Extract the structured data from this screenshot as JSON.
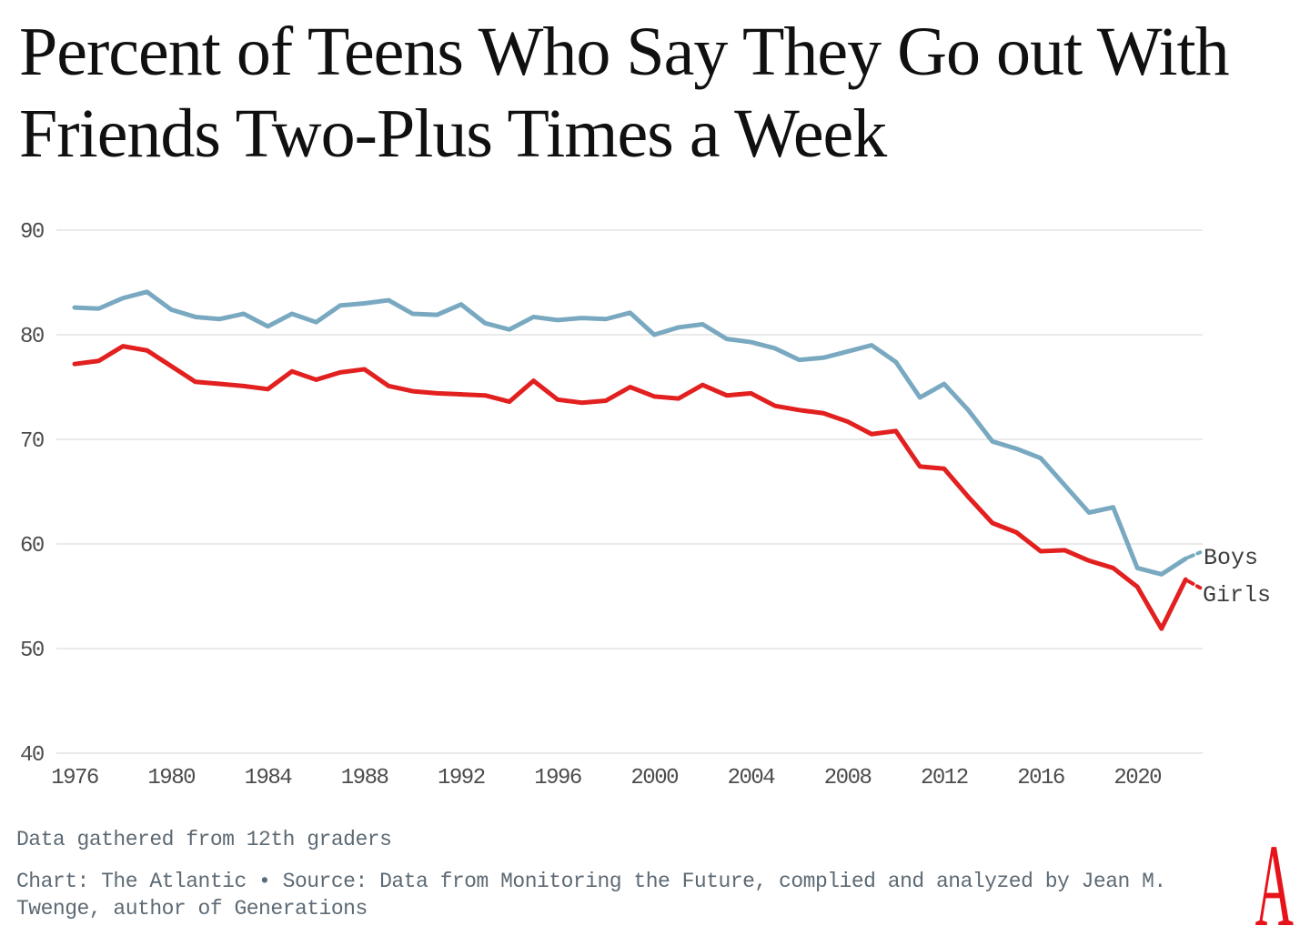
{
  "page": {
    "title_lines": [
      "Percent of Teens Who Say They Go out With",
      "Friends Two-Plus Times a Week"
    ],
    "footer_note": "Data gathered from 12th graders",
    "footer_credit": "Chart: The Atlantic • Source: Data from Monitoring the Future, complied and analyzed by Jean M. Twenge, author of Generations",
    "logo_letter": "A"
  },
  "colors": {
    "boys_line": "#79a9c1",
    "girls_line": "#e1201f",
    "gridline": "#e4e4e4",
    "axis_text": "#4c4c4c",
    "footer_text": "#5d6a74",
    "series_label_text": "#3c3c3c",
    "logo_red": "#e7131a"
  },
  "chart_data": {
    "type": "line",
    "title": "Percent of Teens Who Say They Go out With Friends Two-Plus Times a Week",
    "note": "Data gathered from 12th graders",
    "xlabel": "",
    "ylabel": "",
    "ylim": [
      40,
      90
    ],
    "y_ticks": [
      90,
      80,
      70,
      60,
      50,
      40
    ],
    "x_ticks": [
      1976,
      1980,
      1984,
      1988,
      1992,
      1996,
      2000,
      2004,
      2008,
      2012,
      2016,
      2020
    ],
    "grid": "horizontal",
    "legend_position": "right-end-of-lines",
    "years": [
      1976,
      1977,
      1978,
      1979,
      1980,
      1981,
      1982,
      1983,
      1984,
      1985,
      1986,
      1987,
      1988,
      1989,
      1990,
      1991,
      1992,
      1993,
      1994,
      1995,
      1996,
      1997,
      1998,
      1999,
      2000,
      2001,
      2002,
      2003,
      2004,
      2005,
      2006,
      2007,
      2008,
      2009,
      2010,
      2011,
      2012,
      2013,
      2014,
      2015,
      2016,
      2017,
      2018,
      2019,
      2020,
      2021,
      2022
    ],
    "series": [
      {
        "name": "Boys",
        "color": "#79a9c1",
        "values": [
          82.6,
          82.5,
          83.5,
          84.1,
          82.4,
          81.7,
          81.5,
          82.0,
          80.8,
          82.0,
          81.2,
          82.8,
          83.0,
          83.3,
          82.0,
          81.9,
          82.9,
          81.1,
          80.5,
          81.7,
          81.4,
          81.6,
          81.5,
          82.1,
          80.0,
          80.7,
          81.0,
          79.6,
          79.3,
          78.7,
          77.6,
          77.8,
          78.4,
          79.0,
          77.4,
          74.0,
          75.3,
          72.8,
          69.8,
          69.1,
          68.2,
          65.6,
          63.0,
          63.5,
          57.7,
          57.1,
          58.6
        ],
        "dashed_tail_value": 59.2
      },
      {
        "name": "Girls",
        "color": "#e1201f",
        "values": [
          77.2,
          77.5,
          78.9,
          78.5,
          77.0,
          75.5,
          75.3,
          75.1,
          74.8,
          76.5,
          75.7,
          76.4,
          76.7,
          75.1,
          74.6,
          74.4,
          74.3,
          74.2,
          73.6,
          75.6,
          73.8,
          73.5,
          73.7,
          75.0,
          74.1,
          73.9,
          75.2,
          74.2,
          74.4,
          73.2,
          72.8,
          72.5,
          71.7,
          70.5,
          70.8,
          67.4,
          67.2,
          64.5,
          62.0,
          61.1,
          59.3,
          59.4,
          58.4,
          57.7,
          55.9,
          51.9,
          56.6
        ],
        "dashed_tail_value": 55.8
      }
    ]
  }
}
